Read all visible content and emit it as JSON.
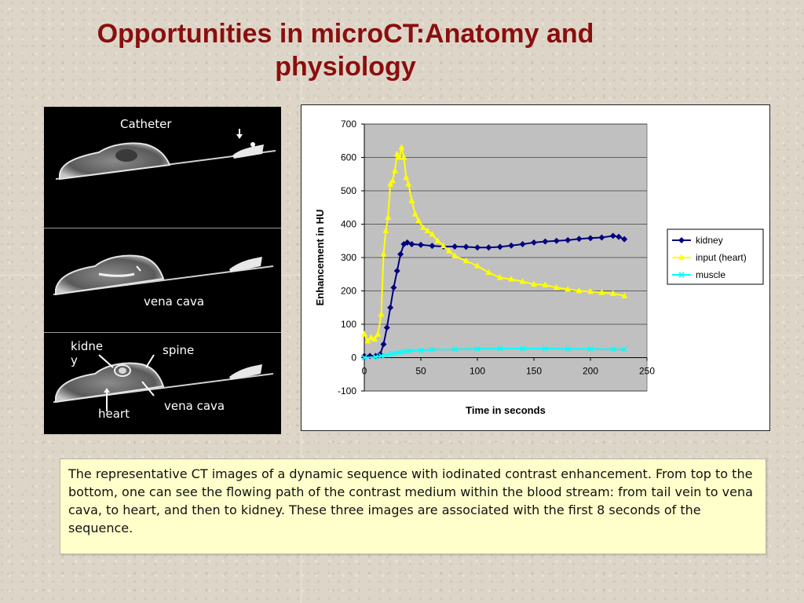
{
  "title": "Opportunities in microCT:Anatomy and physiology",
  "ct_images": {
    "top_label": "Catheter",
    "middle_label": "vena cava",
    "bottom_labels": {
      "kidney": "kidne\ny",
      "spine": "spine",
      "heart": "heart",
      "vena_cava": "vena cava"
    }
  },
  "chart_data": {
    "type": "line",
    "title": "",
    "xlabel": "Time in seconds",
    "ylabel": "Enhancement in HU",
    "xlim": [
      0,
      250
    ],
    "ylim": [
      -100,
      700
    ],
    "x_ticks": [
      0,
      50,
      100,
      150,
      200,
      250
    ],
    "y_ticks": [
      -100,
      0,
      100,
      200,
      300,
      400,
      500,
      600,
      700
    ],
    "plot_background": "#c0c0c0",
    "grid": "horizontal",
    "legend_position": "right",
    "series": [
      {
        "name": "kidney",
        "color": "#000080",
        "marker": "diamond",
        "points": [
          [
            0,
            5
          ],
          [
            5,
            5
          ],
          [
            10,
            5
          ],
          [
            14,
            10
          ],
          [
            17,
            40
          ],
          [
            20,
            90
          ],
          [
            23,
            150
          ],
          [
            26,
            210
          ],
          [
            29,
            260
          ],
          [
            32,
            310
          ],
          [
            35,
            340
          ],
          [
            38,
            345
          ],
          [
            42,
            340
          ],
          [
            50,
            338
          ],
          [
            60,
            335
          ],
          [
            70,
            333
          ],
          [
            80,
            333
          ],
          [
            90,
            332
          ],
          [
            100,
            330
          ],
          [
            110,
            330
          ],
          [
            120,
            332
          ],
          [
            130,
            336
          ],
          [
            140,
            340
          ],
          [
            150,
            345
          ],
          [
            160,
            348
          ],
          [
            170,
            350
          ],
          [
            180,
            352
          ],
          [
            190,
            356
          ],
          [
            200,
            358
          ],
          [
            210,
            360
          ],
          [
            220,
            365
          ],
          [
            225,
            362
          ],
          [
            230,
            355
          ]
        ]
      },
      {
        "name": "input (heart)",
        "color": "#ffff00",
        "marker": "triangle",
        "points": [
          [
            0,
            70
          ],
          [
            3,
            50
          ],
          [
            6,
            60
          ],
          [
            9,
            55
          ],
          [
            12,
            70
          ],
          [
            15,
            130
          ],
          [
            17,
            310
          ],
          [
            19,
            380
          ],
          [
            21,
            420
          ],
          [
            23,
            520
          ],
          [
            25,
            530
          ],
          [
            27,
            560
          ],
          [
            29,
            610
          ],
          [
            31,
            600
          ],
          [
            33,
            630
          ],
          [
            35,
            600
          ],
          [
            37,
            540
          ],
          [
            39,
            520
          ],
          [
            42,
            470
          ],
          [
            45,
            430
          ],
          [
            48,
            410
          ],
          [
            52,
            390
          ],
          [
            56,
            380
          ],
          [
            60,
            370
          ],
          [
            65,
            350
          ],
          [
            70,
            335
          ],
          [
            75,
            320
          ],
          [
            80,
            305
          ],
          [
            90,
            290
          ],
          [
            100,
            275
          ],
          [
            110,
            255
          ],
          [
            120,
            240
          ],
          [
            130,
            235
          ],
          [
            140,
            228
          ],
          [
            150,
            220
          ],
          [
            160,
            218
          ],
          [
            170,
            210
          ],
          [
            180,
            205
          ],
          [
            190,
            200
          ],
          [
            200,
            198
          ],
          [
            210,
            195
          ],
          [
            220,
            192
          ],
          [
            230,
            185
          ]
        ]
      },
      {
        "name": "muscle",
        "color": "#00ffff",
        "marker": "x",
        "points": [
          [
            0,
            0
          ],
          [
            10,
            2
          ],
          [
            15,
            5
          ],
          [
            20,
            8
          ],
          [
            25,
            12
          ],
          [
            30,
            15
          ],
          [
            35,
            18
          ],
          [
            40,
            20
          ],
          [
            50,
            22
          ],
          [
            60,
            24
          ],
          [
            80,
            25
          ],
          [
            100,
            26
          ],
          [
            120,
            27
          ],
          [
            140,
            27
          ],
          [
            160,
            27
          ],
          [
            180,
            26
          ],
          [
            200,
            26
          ],
          [
            220,
            25
          ],
          [
            230,
            25
          ]
        ]
      }
    ]
  },
  "caption": "The representative CT images of a dynamic sequence with iodinated contrast enhancement.  From top to the bottom, one can see the flowing path of the contrast medium within the blood stream: from tail vein to vena cava, to heart, and then to kidney. These three images are associated with the first 8 seconds of the sequence."
}
